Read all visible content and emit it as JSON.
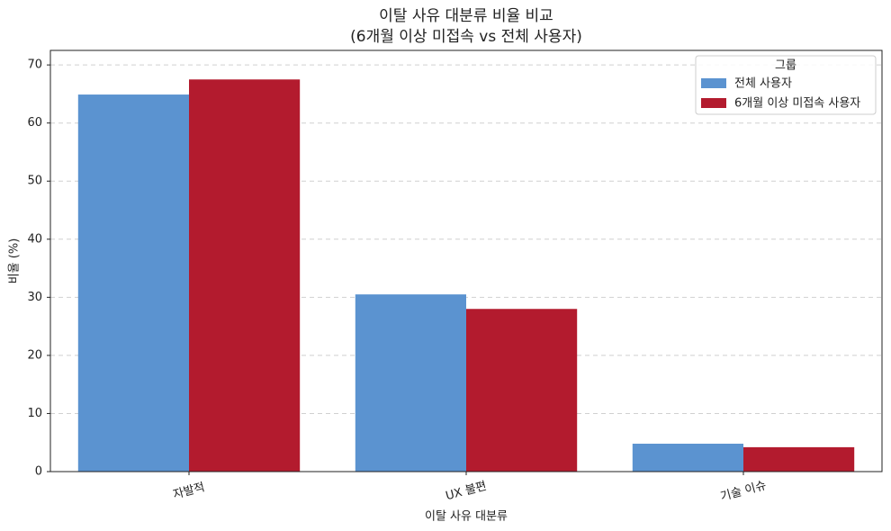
{
  "chart_data": {
    "type": "bar",
    "title": "이탈 사유 대분류 비율 비교",
    "subtitle": "(6개월 이상 미접속 vs 전체 사용자)",
    "x_label": "이탈 사유 대분류",
    "y_label": "비율 (%)",
    "categories": [
      "자발적",
      "UX 불편",
      "기술 이슈"
    ],
    "series": [
      {
        "name": "전체 사용자",
        "color": "#5b93d0",
        "values": [
          64.9,
          30.5,
          4.8
        ]
      },
      {
        "name": "6개월 이상 미접속 사용자",
        "color": "#b31b2e",
        "values": [
          67.5,
          28.0,
          4.2
        ]
      }
    ],
    "legend_title": "그룹",
    "legend": "upper right",
    "ylim": [
      0,
      72.5
    ],
    "yticks": [
      0,
      10,
      20,
      30,
      40,
      50,
      60,
      70
    ],
    "grid": true
  }
}
